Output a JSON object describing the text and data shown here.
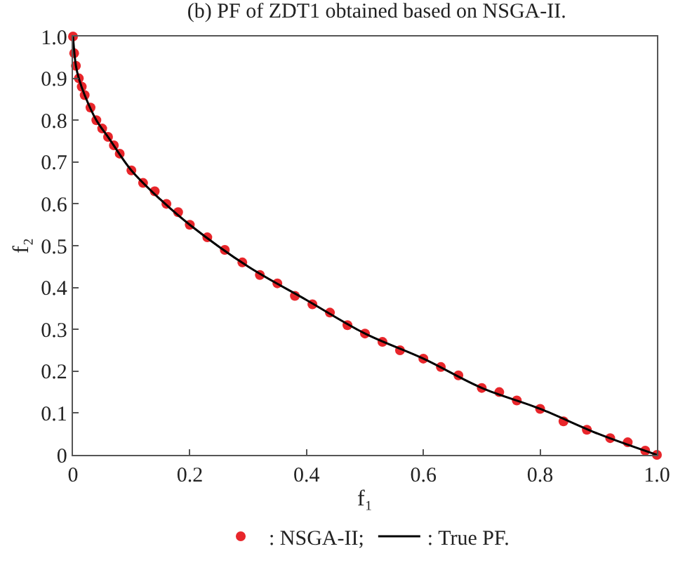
{
  "chart_data": {
    "type": "scatter",
    "title": "(b) PF of ZDT1 obtained based on NSGA-II.",
    "xlabel": "f₁",
    "ylabel": "f₂",
    "xlim": [
      0,
      1.0
    ],
    "ylim": [
      0,
      1.0
    ],
    "xticks": [
      0,
      0.2,
      0.4,
      0.6,
      0.8,
      {
        "value": 1.0,
        "label": "1.0"
      }
    ],
    "yticks": [
      0,
      0.1,
      0.2,
      0.3,
      0.4,
      0.5,
      0.6,
      0.7,
      0.8,
      0.9,
      {
        "value": 1.0,
        "label": "1.0"
      }
    ],
    "grid": false,
    "legend": "bottom",
    "marker": "circle",
    "series": [
      {
        "name": ": NSGA-II;",
        "color": "#e8262b",
        "x": [
          0,
          0.002,
          0.005,
          0.01,
          0.015,
          0.02,
          0.03,
          0.04,
          0.05,
          0.06,
          0.07,
          0.08,
          0.1,
          0.12,
          0.14,
          0.16,
          0.18,
          0.2,
          0.23,
          0.26,
          0.29,
          0.32,
          0.35,
          0.38,
          0.41,
          0.44,
          0.47,
          0.5,
          0.53,
          0.56,
          0.6,
          0.63,
          0.66,
          0.7,
          0.73,
          0.76,
          0.8,
          0.84,
          0.88,
          0.92,
          0.95,
          0.98,
          1.0
        ],
        "values": [
          1.0,
          0.96,
          0.93,
          0.9,
          0.88,
          0.86,
          0.83,
          0.8,
          0.78,
          0.76,
          0.74,
          0.72,
          0.68,
          0.65,
          0.63,
          0.6,
          0.58,
          0.55,
          0.52,
          0.49,
          0.46,
          0.43,
          0.41,
          0.38,
          0.36,
          0.34,
          0.31,
          0.29,
          0.27,
          0.25,
          0.23,
          0.21,
          0.19,
          0.16,
          0.15,
          0.13,
          0.11,
          0.08,
          0.06,
          0.04,
          0.03,
          0.01,
          0
        ]
      },
      {
        "name": ": True PF.",
        "color": "#000000",
        "type": "line",
        "marker": "none",
        "line_style": "solid",
        "x": [
          0,
          0.005,
          0.01,
          0.02,
          0.04,
          0.06,
          0.1,
          0.15,
          0.2,
          0.3,
          0.4,
          0.5,
          0.6,
          0.7,
          0.8,
          0.9,
          1.0
        ],
        "values": [
          1.0,
          0.93,
          0.9,
          0.86,
          0.8,
          0.76,
          0.68,
          0.61,
          0.55,
          0.45,
          0.37,
          0.29,
          0.23,
          0.16,
          0.11,
          0.05,
          0
        ]
      }
    ]
  }
}
